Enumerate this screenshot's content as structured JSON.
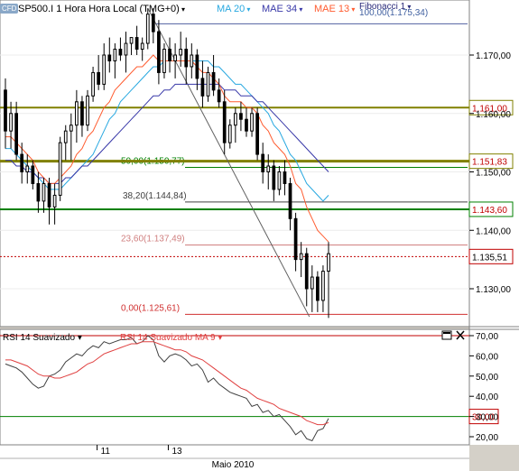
{
  "header": {
    "symbol": "SP500.I 1 Hora Hora Local (TMG+0)",
    "ma20": "MA 20",
    "mae34": "MAE 34",
    "mae13": "MAE 13",
    "fib": "Fibonacci 1",
    "fib_top": "100,00(1.175,34)"
  },
  "colors": {
    "ma20": "#28a8e0",
    "mae34": "#3838a8",
    "mae13": "#ff5c30",
    "price_line": "#c00000",
    "level_olive": "#808000",
    "level_green": "#008000",
    "rsi_line": "#404040",
    "rsi_ma": "#e04040",
    "bg_window": "#d4d0c8"
  },
  "chart_data": [
    {
      "type": "candlestick",
      "title": "SP500.I 1 Hora Hora Local (TMG+0)",
      "ylim": [
        1123.6,
        1179.2
      ],
      "y_ticks": [
        "1.170,00",
        "1.160,00",
        "1.150,00",
        "1.140,00",
        "1.130,00"
      ],
      "x_ticks": [
        "11",
        "13"
      ],
      "month_label": "Maio 2010",
      "candles": [
        [
          1164,
          1166,
          1154,
          1157
        ],
        [
          1157,
          1162,
          1154,
          1160
        ],
        [
          1160,
          1162,
          1152,
          1153
        ],
        [
          1153,
          1155,
          1148,
          1150
        ],
        [
          1150,
          1153,
          1148,
          1151
        ],
        [
          1151,
          1152,
          1147,
          1148
        ],
        [
          1148,
          1150,
          1143,
          1145
        ],
        [
          1145,
          1149,
          1143,
          1148
        ],
        [
          1148,
          1149,
          1141,
          1144
        ],
        [
          1144,
          1148,
          1141,
          1146
        ],
        [
          1146,
          1156,
          1145,
          1155
        ],
        [
          1155,
          1158,
          1152,
          1157
        ],
        [
          1157,
          1160,
          1152,
          1158
        ],
        [
          1158,
          1164,
          1155,
          1162
        ],
        [
          1162,
          1163,
          1156,
          1158
        ],
        [
          1158,
          1164,
          1157,
          1163
        ],
        [
          1163,
          1168,
          1162,
          1167
        ],
        [
          1167,
          1170,
          1164,
          1165
        ],
        [
          1165,
          1172,
          1164,
          1170
        ],
        [
          1170,
          1173,
          1167,
          1169
        ],
        [
          1169,
          1172,
          1166,
          1171
        ],
        [
          1171,
          1173,
          1169,
          1170
        ],
        [
          1170,
          1174,
          1167,
          1172
        ],
        [
          1172,
          1173,
          1170,
          1173
        ],
        [
          1173,
          1175,
          1170,
          1171
        ],
        [
          1171,
          1173,
          1169,
          1172
        ],
        [
          1172,
          1178,
          1171,
          1177
        ],
        [
          1177,
          1178,
          1172,
          1174
        ],
        [
          1174,
          1176,
          1165,
          1167
        ],
        [
          1167,
          1172,
          1166,
          1171
        ],
        [
          1171,
          1173,
          1167,
          1169
        ],
        [
          1169,
          1172,
          1166,
          1170
        ],
        [
          1170,
          1174,
          1168,
          1171
        ],
        [
          1171,
          1173,
          1165,
          1168
        ],
        [
          1168,
          1172,
          1166,
          1170
        ],
        [
          1170,
          1171,
          1164,
          1166
        ],
        [
          1166,
          1169,
          1161,
          1163
        ],
        [
          1163,
          1168,
          1162,
          1167
        ],
        [
          1167,
          1170,
          1163,
          1164
        ],
        [
          1164,
          1166,
          1161,
          1162
        ],
        [
          1162,
          1164,
          1153,
          1155
        ],
        [
          1155,
          1159,
          1154,
          1158
        ],
        [
          1158,
          1161,
          1155,
          1160
        ],
        [
          1160,
          1162,
          1157,
          1159
        ],
        [
          1159,
          1161,
          1156,
          1157
        ],
        [
          1157,
          1161,
          1156,
          1160
        ],
        [
          1160,
          1161,
          1152,
          1153
        ],
        [
          1153,
          1155,
          1148,
          1150
        ],
        [
          1150,
          1153,
          1147,
          1151
        ],
        [
          1151,
          1152,
          1145,
          1147
        ],
        [
          1147,
          1151,
          1146,
          1150
        ],
        [
          1150,
          1152,
          1146,
          1148
        ],
        [
          1148,
          1149,
          1140,
          1142
        ],
        [
          1142,
          1143,
          1133,
          1135
        ],
        [
          1135,
          1138,
          1132,
          1136
        ],
        [
          1136,
          1137,
          1127,
          1130
        ],
        [
          1130,
          1134,
          1126,
          1132
        ],
        [
          1132,
          1133,
          1126,
          1128
        ],
        [
          1128,
          1134,
          1126,
          1133
        ],
        [
          1133,
          1138,
          1125,
          1136
        ]
      ],
      "series": [
        {
          "name": "MA 20",
          "values": [
            1154,
            1154,
            1153,
            1152,
            1151,
            1150,
            1149,
            1148,
            1147,
            1147,
            1147,
            1148,
            1149,
            1150,
            1151,
            1152,
            1153,
            1155,
            1157,
            1159,
            1160,
            1162,
            1163,
            1164,
            1165,
            1166,
            1167,
            1168,
            1168,
            1169,
            1169,
            1169,
            1169,
            1169,
            1169,
            1169,
            1169,
            1169,
            1168,
            1168,
            1167,
            1166,
            1165,
            1165,
            1164,
            1163,
            1162,
            1161,
            1160,
            1158,
            1157,
            1155,
            1153,
            1152,
            1150,
            1148,
            1147,
            1146,
            1145,
            1146
          ]
        },
        {
          "name": "MAE 34",
          "values": [
            1152,
            1152,
            1151,
            1151,
            1150,
            1150,
            1149,
            1149,
            1148,
            1148,
            1148,
            1149,
            1149,
            1150,
            1151,
            1151,
            1152,
            1153,
            1154,
            1155,
            1156,
            1157,
            1158,
            1159,
            1160,
            1161,
            1162,
            1163,
            1163,
            1164,
            1164,
            1165,
            1165,
            1165,
            1165,
            1165,
            1165,
            1165,
            1165,
            1165,
            1164,
            1164,
            1164,
            1163,
            1163,
            1163,
            1162,
            1162,
            1161,
            1160,
            1159,
            1158,
            1157,
            1156,
            1155,
            1154,
            1153,
            1152,
            1151,
            1150
          ]
        },
        {
          "name": "MAE 13",
          "values": [
            1156,
            1156,
            1155,
            1154,
            1153,
            1152,
            1150,
            1149,
            1148,
            1148,
            1149,
            1150,
            1151,
            1153,
            1154,
            1156,
            1157,
            1159,
            1161,
            1162,
            1164,
            1165,
            1166,
            1167,
            1168,
            1168,
            1169,
            1170,
            1169,
            1169,
            1169,
            1169,
            1169,
            1169,
            1169,
            1168,
            1167,
            1167,
            1166,
            1165,
            1163,
            1162,
            1162,
            1162,
            1161,
            1161,
            1160,
            1158,
            1157,
            1155,
            1154,
            1153,
            1151,
            1148,
            1147,
            1144,
            1142,
            1140,
            1139,
            1138
          ]
        }
      ],
      "horizontal_levels": [
        {
          "label": "1.161,00",
          "value": 1161.0
        },
        {
          "label": "1.151,83",
          "value": 1151.83
        },
        {
          "label": "1.143,60",
          "value": 1143.6
        },
        {
          "label": "1.135,51",
          "value": 1135.51
        }
      ],
      "fibonacci": [
        {
          "label": "100,00(1.175,34)",
          "value": 1175.34
        },
        {
          "label": "50,00(1.150,77)",
          "value": 1150.77
        },
        {
          "label": "38,20(1.144,84)",
          "value": 1144.84
        },
        {
          "label": "23,60(1.137,49)",
          "value": 1137.49
        },
        {
          "label": "0,00(1.125,61)",
          "value": 1125.61
        }
      ]
    },
    {
      "type": "line",
      "title": "RSI 14 Suavizado",
      "ylim": [
        15,
        74
      ],
      "y_ticks": [
        "70,00",
        "60,00",
        "50,00",
        "40,00",
        "30,00",
        "20,00"
      ],
      "horizontal_levels": [
        {
          "label": "30,00",
          "value": 30
        },
        {
          "label": "",
          "value": 70
        }
      ],
      "series": [
        {
          "name": "RSI 14 Suavizado",
          "values": [
            56,
            55,
            54,
            52,
            49,
            46,
            44,
            45,
            50,
            51,
            53,
            57,
            59,
            61,
            60,
            63,
            65,
            64,
            67,
            66,
            67,
            68,
            68,
            69,
            66,
            67,
            70,
            68,
            60,
            57,
            60,
            61,
            60,
            58,
            55,
            56,
            53,
            47,
            49,
            46,
            44,
            42,
            41,
            40,
            39,
            35,
            36,
            32,
            33,
            30,
            31,
            28,
            25,
            21,
            23,
            19,
            18,
            23,
            24,
            29
          ]
        },
        {
          "name": "RSI 14 Suavizado MA 9",
          "values": [
            58,
            58,
            57,
            56,
            55,
            53,
            51,
            50,
            50,
            49,
            49,
            50,
            51,
            52,
            54,
            56,
            57,
            59,
            61,
            62,
            63,
            64,
            65,
            66,
            66,
            67,
            67,
            67,
            66,
            65,
            64,
            63,
            63,
            62,
            60,
            59,
            58,
            56,
            54,
            52,
            50,
            48,
            46,
            44,
            43,
            41,
            39,
            38,
            37,
            36,
            34,
            33,
            32,
            31,
            30,
            28,
            27,
            26,
            26,
            27
          ]
        }
      ]
    }
  ]
}
